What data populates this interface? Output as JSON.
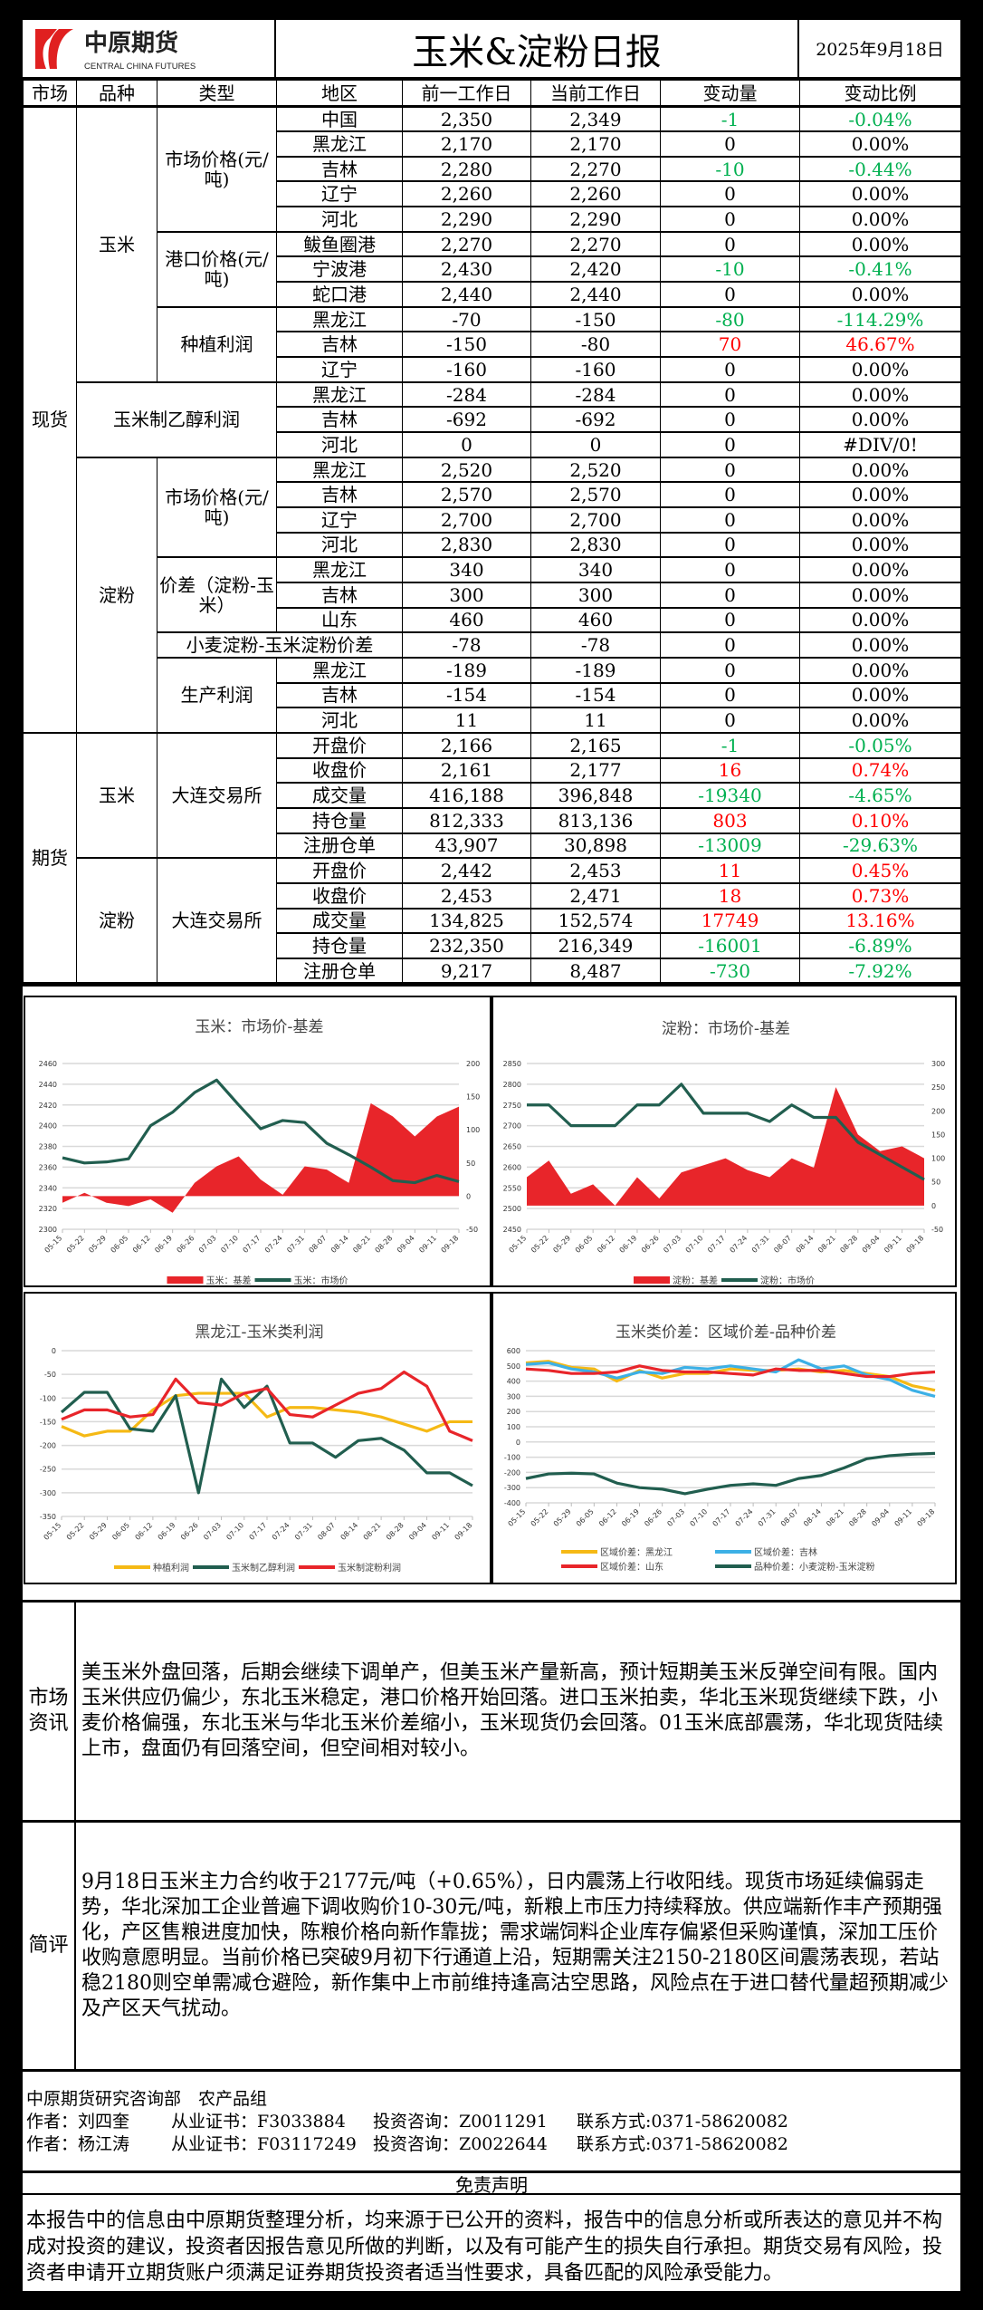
{
  "header": {
    "company_cn": "中原期货",
    "company_en": "CENTRAL CHINA FUTURES",
    "title": "玉米&淀粉日报",
    "date": "2025年9月18日"
  },
  "table": {
    "columns": [
      "市场",
      "品种",
      "类型",
      "地区",
      "前一工作日",
      "当前工作日",
      "变动量",
      "变动比例"
    ],
    "markets": [
      {
        "name": "现货",
        "varieties": [
          {
            "name": "玉米",
            "groups": [
              {
                "type": "市场价格(元/吨)",
                "rows": [
                  [
                    "中国",
                    "2,350",
                    "2,349",
                    "-1",
                    "-0.04%"
                  ],
                  [
                    "黑龙江",
                    "2,170",
                    "2,170",
                    "0",
                    "0.00%"
                  ],
                  [
                    "吉林",
                    "2,280",
                    "2,270",
                    "-10",
                    "-0.44%"
                  ],
                  [
                    "辽宁",
                    "2,260",
                    "2,260",
                    "0",
                    "0.00%"
                  ],
                  [
                    "河北",
                    "2,290",
                    "2,290",
                    "0",
                    "0.00%"
                  ]
                ]
              },
              {
                "type": "港口价格(元/吨)",
                "rows": [
                  [
                    "鲅鱼圈港",
                    "2,270",
                    "2,270",
                    "0",
                    "0.00%"
                  ],
                  [
                    "宁波港",
                    "2,430",
                    "2,420",
                    "-10",
                    "-0.41%"
                  ],
                  [
                    "蛇口港",
                    "2,440",
                    "2,440",
                    "0",
                    "0.00%"
                  ]
                ]
              },
              {
                "type": "种植利润",
                "rows": [
                  [
                    "黑龙江",
                    "-70",
                    "-150",
                    "-80",
                    "-114.29%"
                  ],
                  [
                    "吉林",
                    "-150",
                    "-80",
                    "70",
                    "46.67%"
                  ],
                  [
                    "辽宁",
                    "-160",
                    "-160",
                    "0",
                    "0.00%"
                  ]
                ]
              }
            ]
          },
          {
            "name": "玉米制乙醇利润",
            "merged": true,
            "groups": [
              {
                "type": "",
                "rows": [
                  [
                    "黑龙江",
                    "-284",
                    "-284",
                    "0",
                    "0.00%"
                  ],
                  [
                    "吉林",
                    "-692",
                    "-692",
                    "0",
                    "0.00%"
                  ],
                  [
                    "河北",
                    "0",
                    "0",
                    "0",
                    "#DIV/0!"
                  ]
                ]
              }
            ]
          },
          {
            "name": "淀粉",
            "groups": [
              {
                "type": "市场价格(元/吨)",
                "rows": [
                  [
                    "黑龙江",
                    "2,520",
                    "2,520",
                    "0",
                    "0.00%"
                  ],
                  [
                    "吉林",
                    "2,570",
                    "2,570",
                    "0",
                    "0.00%"
                  ],
                  [
                    "辽宁",
                    "2,700",
                    "2,700",
                    "0",
                    "0.00%"
                  ],
                  [
                    "河北",
                    "2,830",
                    "2,830",
                    "0",
                    "0.00%"
                  ]
                ]
              },
              {
                "type": "价差（淀粉-玉米）",
                "rows": [
                  [
                    "黑龙江",
                    "340",
                    "340",
                    "0",
                    "0.00%"
                  ],
                  [
                    "吉林",
                    "300",
                    "300",
                    "0",
                    "0.00%"
                  ],
                  [
                    "山东",
                    "460",
                    "460",
                    "0",
                    "0.00%"
                  ]
                ]
              },
              {
                "type": "小麦淀粉-玉米淀粉价差",
                "span_region": true,
                "rows": [
                  [
                    "",
                    "-78",
                    "-78",
                    "0",
                    "0.00%"
                  ]
                ]
              },
              {
                "type": "生产利润",
                "rows": [
                  [
                    "黑龙江",
                    "-189",
                    "-189",
                    "0",
                    "0.00%"
                  ],
                  [
                    "吉林",
                    "-154",
                    "-154",
                    "0",
                    "0.00%"
                  ],
                  [
                    "河北",
                    "11",
                    "11",
                    "0",
                    "0.00%"
                  ]
                ]
              }
            ]
          }
        ]
      },
      {
        "name": "期货",
        "varieties": [
          {
            "name": "玉米",
            "groups": [
              {
                "type": "大连交易所",
                "rows": [
                  [
                    "开盘价",
                    "2,166",
                    "2,165",
                    "-1",
                    "-0.05%"
                  ],
                  [
                    "收盘价",
                    "2,161",
                    "2,177",
                    "16",
                    "0.74%"
                  ],
                  [
                    "成交量",
                    "416,188",
                    "396,848",
                    "-19340",
                    "-4.65%"
                  ],
                  [
                    "持仓量",
                    "812,333",
                    "813,136",
                    "803",
                    "0.10%"
                  ],
                  [
                    "注册仓单",
                    "43,907",
                    "30,898",
                    "-13009",
                    "-29.63%"
                  ]
                ]
              }
            ]
          },
          {
            "name": "淀粉",
            "groups": [
              {
                "type": "大连交易所",
                "rows": [
                  [
                    "开盘价",
                    "2,442",
                    "2,453",
                    "11",
                    "0.45%"
                  ],
                  [
                    "收盘价",
                    "2,453",
                    "2,471",
                    "18",
                    "0.73%"
                  ],
                  [
                    "成交量",
                    "134,825",
                    "152,574",
                    "17749",
                    "13.16%"
                  ],
                  [
                    "持仓量",
                    "232,350",
                    "216,349",
                    "-16001",
                    "-6.89%"
                  ],
                  [
                    "注册仓单",
                    "9,217",
                    "8,487",
                    "-730",
                    "-7.92%"
                  ]
                ]
              }
            ]
          }
        ]
      }
    ]
  },
  "colors": {
    "up": "#ff0000",
    "down": "#00b050",
    "basis": "#e8252a",
    "price": "#215e4f",
    "yellow": "#f5b915",
    "blue": "#3cb0e6"
  },
  "chart_data": [
    {
      "type": "area+line",
      "title": "玉米：市场价-基差",
      "x": [
        "05-15",
        "05-22",
        "05-29",
        "06-05",
        "06-12",
        "06-19",
        "06-26",
        "07-03",
        "07-10",
        "07-17",
        "07-24",
        "07-31",
        "08-07",
        "08-14",
        "08-21",
        "08-28",
        "09-04",
        "09-11",
        "09-18"
      ],
      "y_left": {
        "min": 2300,
        "max": 2460,
        "step": 20,
        "ticks": [
          "2300",
          "2320",
          "2340",
          "2360",
          "2380",
          "2400",
          "2420",
          "2440",
          "2460"
        ]
      },
      "y_right": {
        "min": -50,
        "max": 200,
        "step": 50,
        "ticks": [
          "-50",
          "0",
          "50",
          "100",
          "150",
          "200"
        ]
      },
      "series": [
        {
          "name": "玉米：基差",
          "kind": "area",
          "axis": "right",
          "color": "#e8252a",
          "values": [
            -10,
            5,
            -10,
            -15,
            -5,
            -25,
            20,
            45,
            60,
            25,
            2,
            45,
            40,
            20,
            140,
            120,
            90,
            120,
            135
          ]
        },
        {
          "name": "玉米：市场价",
          "kind": "line",
          "axis": "left",
          "color": "#215e4f",
          "values": [
            2369,
            2364,
            2365,
            2368,
            2400,
            2413,
            2432,
            2444,
            2420,
            2397,
            2405,
            2403,
            2383,
            2372,
            2360,
            2347,
            2345,
            2352,
            2346
          ]
        }
      ]
    },
    {
      "type": "area+line",
      "title": "淀粉：市场价-基差",
      "x": [
        "05-15",
        "05-22",
        "05-29",
        "06-05",
        "06-12",
        "06-19",
        "06-26",
        "07-03",
        "07-10",
        "07-17",
        "07-24",
        "07-31",
        "08-07",
        "08-14",
        "08-21",
        "08-28",
        "09-04",
        "09-11",
        "09-18"
      ],
      "y_left": {
        "min": 2450,
        "max": 2850,
        "step": 50,
        "ticks": [
          "2450",
          "2500",
          "2550",
          "2600",
          "2650",
          "2700",
          "2750",
          "2800",
          "2850"
        ]
      },
      "y_right": {
        "min": -50,
        "max": 300,
        "step": 50,
        "ticks": [
          "-50",
          "0",
          "50",
          "100",
          "150",
          "200",
          "250",
          "300"
        ]
      },
      "series": [
        {
          "name": "淀粉：基差",
          "kind": "area",
          "axis": "right",
          "color": "#e8252a",
          "values": [
            60,
            95,
            25,
            45,
            0,
            60,
            15,
            70,
            85,
            100,
            75,
            60,
            100,
            80,
            250,
            150,
            115,
            125,
            100
          ]
        },
        {
          "name": "淀粉：市场价",
          "kind": "line",
          "axis": "left",
          "color": "#215e4f",
          "values": [
            2750,
            2750,
            2700,
            2700,
            2700,
            2750,
            2750,
            2800,
            2730,
            2730,
            2730,
            2710,
            2750,
            2720,
            2720,
            2660,
            2630,
            2600,
            2570
          ]
        }
      ]
    },
    {
      "type": "line",
      "title": "黑龙江-玉米类利润",
      "x": [
        "05-15",
        "05-22",
        "05-29",
        "06-05",
        "06-12",
        "06-19",
        "06-26",
        "07-03",
        "07-10",
        "07-17",
        "07-24",
        "07-31",
        "08-07",
        "08-14",
        "08-21",
        "08-28",
        "09-04",
        "09-11",
        "09-18"
      ],
      "y_left": {
        "min": -350,
        "max": 0,
        "step": 50,
        "ticks": [
          "-350",
          "-300",
          "-250",
          "-200",
          "-150",
          "-100",
          "-50",
          "0"
        ]
      },
      "series": [
        {
          "name": "种植利润",
          "kind": "line",
          "axis": "left",
          "color": "#f5b915",
          "values": [
            -160,
            -180,
            -170,
            -170,
            -125,
            -95,
            -90,
            -90,
            -90,
            -140,
            -120,
            -120,
            -125,
            -130,
            -140,
            -155,
            -170,
            -150,
            -150
          ]
        },
        {
          "name": "玉米制乙醇利润",
          "kind": "line",
          "axis": "left",
          "color": "#215e4f",
          "values": [
            -130,
            -88,
            -88,
            -165,
            -170,
            -95,
            -300,
            -60,
            -120,
            -75,
            -195,
            -195,
            -225,
            -190,
            -185,
            -210,
            -258,
            -258,
            -285
          ]
        },
        {
          "name": "玉米制淀粉利润",
          "kind": "line",
          "axis": "left",
          "color": "#e8252a",
          "values": [
            -145,
            -125,
            -125,
            -140,
            -135,
            -60,
            -110,
            -115,
            -90,
            -80,
            -135,
            -140,
            -115,
            -90,
            -80,
            -45,
            -75,
            -170,
            -190
          ]
        }
      ]
    },
    {
      "type": "line",
      "title": "玉米类价差：区域价差-品种价差",
      "x": [
        "05-15",
        "05-22",
        "05-29",
        "06-05",
        "06-12",
        "06-19",
        "06-26",
        "07-03",
        "07-10",
        "07-17",
        "07-24",
        "07-31",
        "08-07",
        "08-14",
        "08-21",
        "08-28",
        "09-04",
        "09-11",
        "09-18"
      ],
      "y_left": {
        "min": -400,
        "max": 600,
        "step": 100,
        "ticks": [
          "-400",
          "-300",
          "-200",
          "-100",
          "0",
          "100",
          "200",
          "300",
          "400",
          "500",
          "600"
        ]
      },
      "series": [
        {
          "name": "区域价差：黑龙江",
          "kind": "line",
          "axis": "left",
          "color": "#f5b915",
          "values": [
            520,
            530,
            490,
            480,
            400,
            470,
            420,
            450,
            450,
            480,
            470,
            470,
            480,
            460,
            470,
            450,
            430,
            370,
            340
          ]
        },
        {
          "name": "区域价差：吉林",
          "kind": "line",
          "axis": "left",
          "color": "#3cb0e6",
          "values": [
            510,
            520,
            480,
            460,
            420,
            460,
            450,
            490,
            480,
            500,
            480,
            460,
            540,
            480,
            500,
            440,
            410,
            340,
            300
          ]
        },
        {
          "name": "区域价差：山东",
          "kind": "line",
          "axis": "left",
          "color": "#e8252a",
          "values": [
            480,
            470,
            450,
            450,
            460,
            500,
            470,
            460,
            460,
            450,
            440,
            480,
            470,
            470,
            450,
            430,
            430,
            450,
            460
          ]
        },
        {
          "name": "品种价差：小麦淀粉-玉米淀粉",
          "kind": "line",
          "axis": "left",
          "color": "#215e4f",
          "values": [
            -240,
            -210,
            -205,
            -210,
            -270,
            -300,
            -310,
            -340,
            -310,
            -285,
            -275,
            -285,
            -240,
            -220,
            -170,
            -110,
            -90,
            -80,
            -75
          ]
        }
      ]
    }
  ],
  "news": {
    "label": "市场资讯",
    "text": "美玉米外盘回落，后期会继续下调单产，但美玉米产量新高，预计短期美玉米反弹空间有限。国内玉米供应仍偏少，东北玉米稳定，港口价格开始回落。进口玉米拍卖，华北玉米现货继续下跌，小麦价格偏强，东北玉米与华北玉米价差缩小，玉米现货仍会回落。01玉米底部震荡，华北现货陆续上市，盘面仍有回落空间，但空间相对较小。"
  },
  "comment": {
    "label": "简评",
    "text": "9月18日玉米主力合约收于2177元/吨（+0.65%），日内震荡上行收阳线。现货市场延续偏弱走势，华北深加工企业普遍下调收购价10-30元/吨，新粮上市压力持续释放。供应端新作丰产预期强化，产区售粮进度加快，陈粮价格向新作靠拢；需求端饲料企业库存偏紧但采购谨慎，深加工压价收购意愿明显。当前价格已突破9月初下行通道上沿，短期需关注2150-2180区间震荡表现，若站稳2180则空单需减仓避险，新作集中上市前维持逢高沽空思路，风险点在于进口替代量超预期减少及产区天气扰动。"
  },
  "authors": {
    "dept": "中原期货研究咨询部　农产品组",
    "list": [
      {
        "name": "作者：刘四奎",
        "cert": "从业证书：F3033884",
        "advisory": "投资咨询：Z0011291",
        "contact": "联系方式:0371-58620082"
      },
      {
        "name": "作者：杨江涛",
        "cert": "从业证书：F03117249",
        "advisory": "投资咨询：Z0022644",
        "contact": "联系方式:0371-58620082"
      }
    ]
  },
  "disclaimer": {
    "title": "免责声明",
    "text": "本报告中的信息由中原期货整理分析，均来源于已公开的资料，报告中的信息分析或所表达的意见并不构成对投资的建议，投资者因报告意见所做的判断，以及有可能产生的损失自行承担。期货交易有风险，投资者申请开立期货账户须满足证券期货投资者适当性要求，具备匹配的风险承受能力。"
  }
}
